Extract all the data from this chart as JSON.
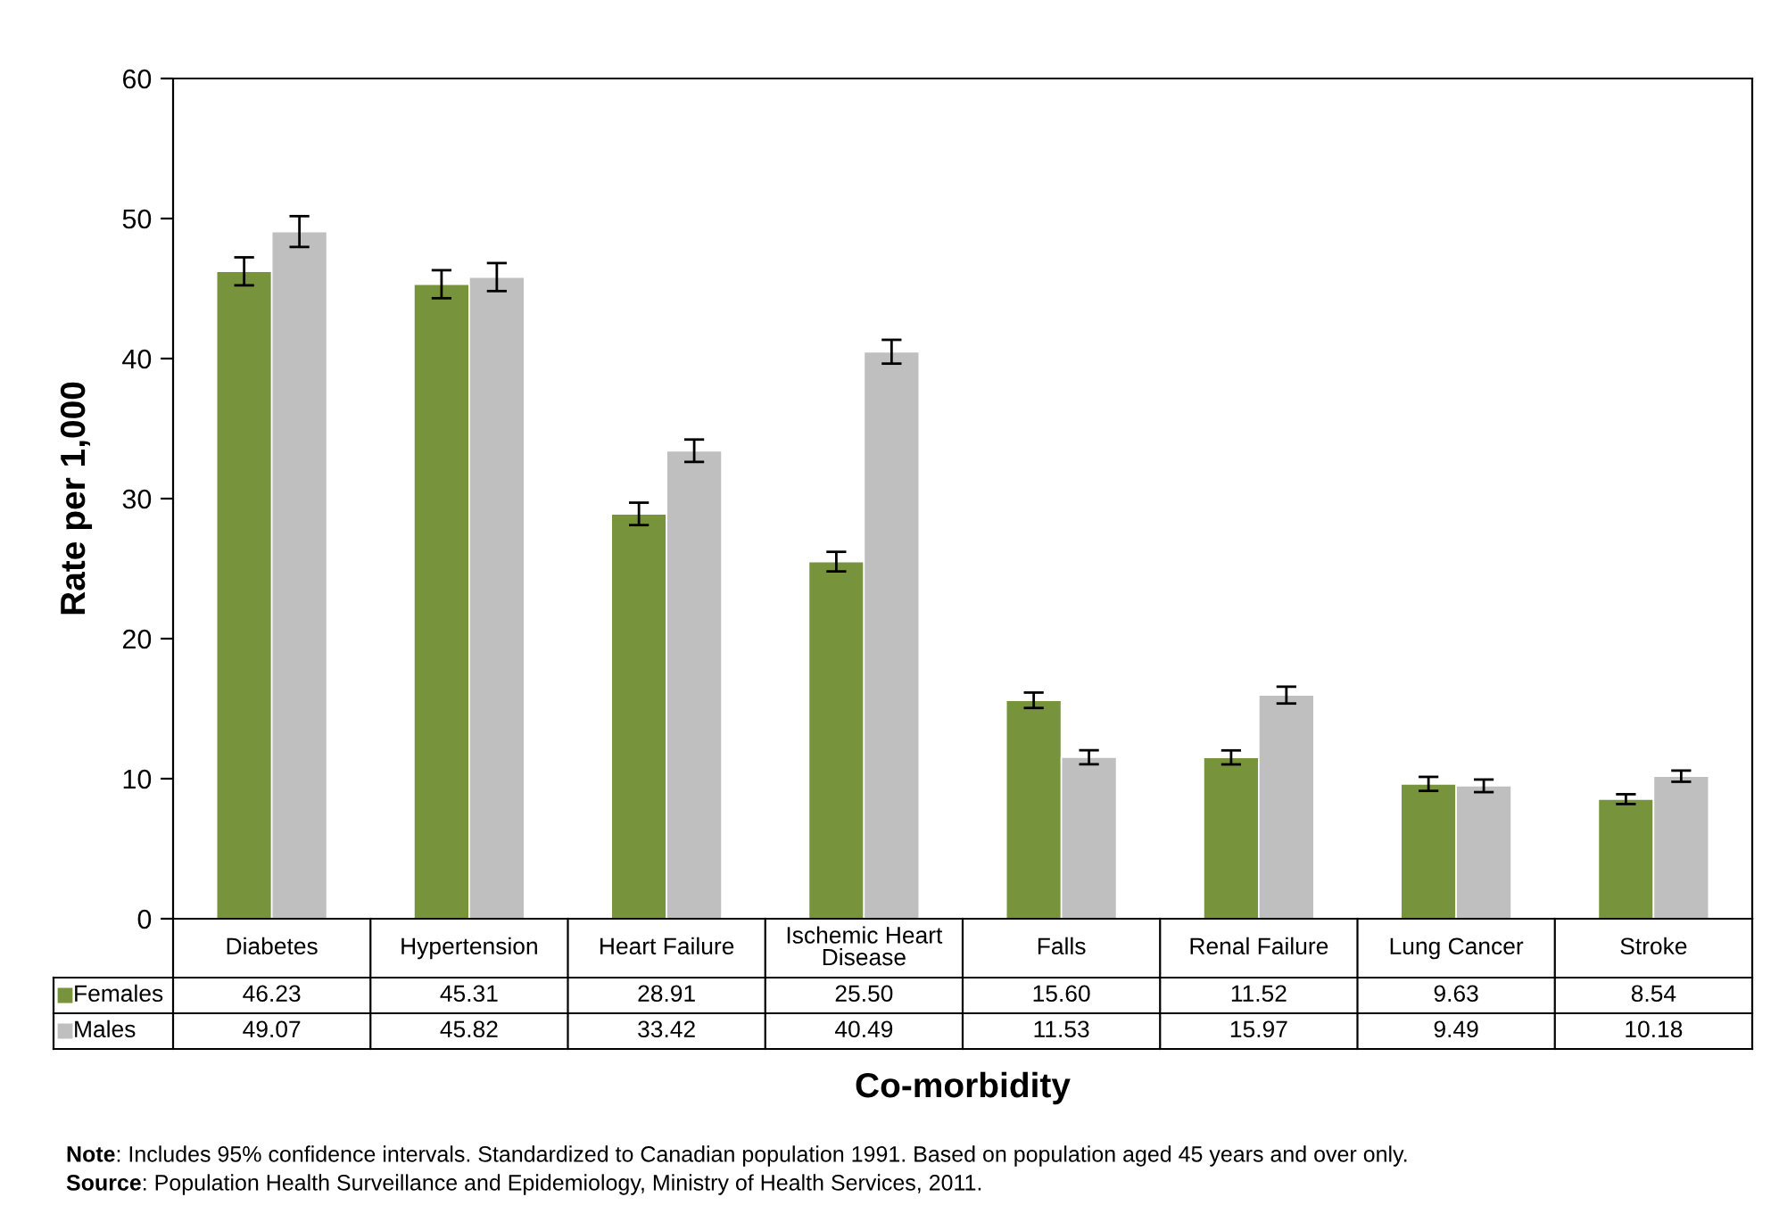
{
  "chart_data": {
    "type": "bar",
    "categories": [
      "Diabetes",
      "Hypertension",
      "Heart Failure",
      "Ischemic Heart\nDisease",
      "Falls",
      "Renal Failure",
      "Lung Cancer",
      "Stroke"
    ],
    "series": [
      {
        "name": "Females",
        "color": "#77933c",
        "values": [
          46.23,
          45.31,
          28.91,
          25.5,
          15.6,
          11.52,
          9.63,
          8.54
        ],
        "errors": [
          1.0,
          1.0,
          0.8,
          0.7,
          0.55,
          0.5,
          0.5,
          0.35
        ],
        "value_labels": [
          "46.23",
          "45.31",
          "28.91",
          "25.50",
          "15.60",
          "11.52",
          "9.63",
          "8.54"
        ]
      },
      {
        "name": "Males",
        "color": "#bfbfbf",
        "values": [
          49.07,
          45.82,
          33.42,
          40.49,
          11.53,
          15.97,
          9.49,
          10.18
        ],
        "errors": [
          1.1,
          1.0,
          0.8,
          0.85,
          0.5,
          0.6,
          0.45,
          0.4
        ],
        "value_labels": [
          "49.07",
          "45.82",
          "33.42",
          "40.49",
          "11.53",
          "15.97",
          "9.49",
          "10.18"
        ]
      }
    ],
    "xlabel": "Co-morbidity",
    "ylabel": "Rate per 1,000",
    "ylim": [
      0,
      60
    ],
    "yticks": [
      0,
      10,
      20,
      30,
      40,
      50,
      60
    ],
    "grid": false,
    "legend": "bottom",
    "annotations": [
      "Note: Includes 95% confidence intervals. Standardized to Canadian population 1991. Based on population aged 45 years and over only.",
      "Source: Population Health Surveillance and Epidemiology, Ministry of Health Services, 2011."
    ]
  }
}
